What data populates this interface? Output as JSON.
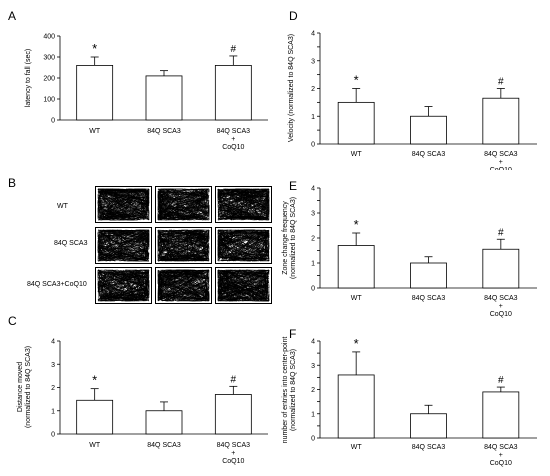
{
  "panels": {
    "A": {
      "letter": "A",
      "ylabel": "latency to fall (sec)"
    },
    "B": {
      "letter": "B",
      "rows": [
        {
          "label": "WT"
        },
        {
          "label": "84Q SCA3"
        },
        {
          "label": "84Q SCA3+CoQ10"
        }
      ]
    },
    "C": {
      "letter": "C",
      "ylabel": [
        "Distance moved",
        "(normalized to 84Q SCA3)"
      ]
    },
    "D": {
      "letter": "D",
      "ylabel": "Velocity (normalized to 84Q SCA3)"
    },
    "E": {
      "letter": "E",
      "ylabel": [
        "Zone change frequency",
        "(normalized to 84Q SCA3)"
      ]
    },
    "F": {
      "letter": "F",
      "ylabel": [
        "number of entries into center-point",
        "(normalized to 84Q SCA3)"
      ]
    }
  },
  "categories": [
    [
      "WT"
    ],
    [
      "84Q SCA3"
    ],
    [
      "84Q SCA3",
      "+",
      "CoQ10"
    ]
  ],
  "chart_data": [
    {
      "panel": "A",
      "type": "bar",
      "categories": [
        "WT",
        "84Q SCA3",
        "84Q SCA3 + CoQ10"
      ],
      "values": [
        260,
        210,
        260
      ],
      "errors": [
        40,
        25,
        45
      ],
      "ylim": [
        0,
        400
      ],
      "yticks": [
        0,
        100,
        200,
        300,
        400
      ],
      "ytick_labels": [
        "0",
        "100",
        "200",
        "300",
        "400"
      ],
      "ylabel": "latency to fall (sec)",
      "annotations": [
        "*",
        "",
        "#"
      ]
    },
    {
      "panel": "C",
      "type": "bar",
      "categories": [
        "WT",
        "84Q SCA3",
        "84Q SCA3 + CoQ10"
      ],
      "values": [
        1.45,
        1.0,
        1.7
      ],
      "errors": [
        0.5,
        0.38,
        0.35
      ],
      "ylim": [
        0,
        4
      ],
      "yticks": [
        0,
        1,
        2,
        3,
        4
      ],
      "ytick_labels": [
        "0",
        "1",
        "2",
        "3",
        "4"
      ],
      "ylabel": "Distance moved (normalized to 84Q SCA3)",
      "annotations": [
        "*",
        "",
        "#"
      ]
    },
    {
      "panel": "D",
      "type": "bar",
      "categories": [
        "WT",
        "84Q SCA3",
        "84Q SCA3 + CoQ10"
      ],
      "values": [
        1.5,
        1.0,
        1.65
      ],
      "errors": [
        0.5,
        0.35,
        0.35
      ],
      "ylim": [
        0,
        4
      ],
      "yticks": [
        0,
        0.5,
        1,
        1.5,
        2,
        2.5,
        3,
        3.5,
        4
      ],
      "ytick_labels": [
        "0",
        "",
        "1",
        "",
        "2",
        "",
        "3",
        "",
        "4"
      ],
      "ylabel": "Velocity (normalized to 84Q SCA3)",
      "annotations": [
        "*",
        "",
        "#"
      ]
    },
    {
      "panel": "E",
      "type": "bar",
      "categories": [
        "WT",
        "84Q SCA3",
        "84Q SCA3 + CoQ10"
      ],
      "values": [
        1.7,
        1.0,
        1.55
      ],
      "errors": [
        0.5,
        0.25,
        0.4
      ],
      "ylim": [
        0,
        4
      ],
      "yticks": [
        0,
        0.5,
        1,
        1.5,
        2,
        2.5,
        3,
        3.5,
        4
      ],
      "ytick_labels": [
        "0",
        "",
        "1",
        "",
        "2",
        "",
        "3",
        "",
        "4"
      ],
      "ylabel": "Zone change frequency (normalized to 84Q SCA3)",
      "annotations": [
        "*",
        "",
        "#"
      ]
    },
    {
      "panel": "F",
      "type": "bar",
      "categories": [
        "WT",
        "84Q SCA3",
        "84Q SCA3 + CoQ10"
      ],
      "values": [
        2.6,
        1.0,
        1.9
      ],
      "errors": [
        0.95,
        0.35,
        0.2
      ],
      "ylim": [
        0,
        4
      ],
      "yticks": [
        0,
        0.5,
        1,
        1.5,
        2,
        2.5,
        3,
        3.5,
        4
      ],
      "ytick_labels": [
        "0",
        "",
        "1",
        "",
        "2",
        "",
        "3",
        "",
        "4"
      ],
      "ylabel": "number of entries into center-point (normalized to 84Q SCA3)",
      "annotations": [
        "*",
        "",
        "#"
      ]
    }
  ]
}
